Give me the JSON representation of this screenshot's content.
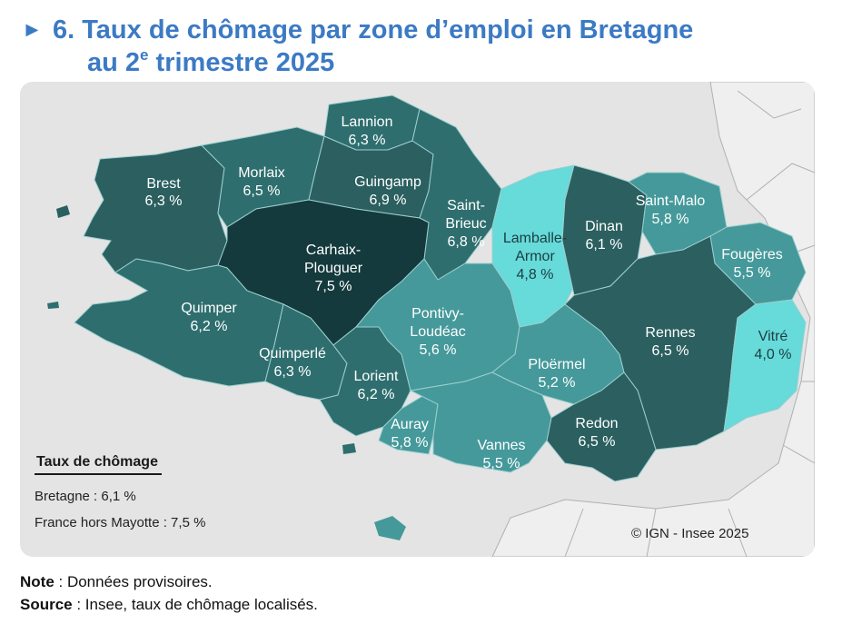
{
  "title": {
    "marker": "►",
    "line1": "6. Taux de chômage par zone d’emploi en Bretagne",
    "line2_prefix": "au 2",
    "line2_sup": "e",
    "line2_suffix": " trimestre 2025"
  },
  "map": {
    "zones": [
      {
        "name": "Brest",
        "rate": "6,3 %"
      },
      {
        "name": "Morlaix",
        "rate": "6,5 %"
      },
      {
        "name": "Lannion",
        "rate": "6,3 %"
      },
      {
        "name": "Guingamp",
        "rate": "6,9 %"
      },
      {
        "name": "Saint-Brieuc",
        "rate": "6,8 %"
      },
      {
        "name": "Lamballe-Armor",
        "rate": "4,8 %"
      },
      {
        "name": "Dinan",
        "rate": "6,1 %"
      },
      {
        "name": "Saint-Malo",
        "rate": "5,8 %"
      },
      {
        "name": "Fougères",
        "rate": "5,5 %"
      },
      {
        "name": "Carhaix-Plouguer",
        "rate": "7,5 %"
      },
      {
        "name": "Quimper",
        "rate": "6,2 %"
      },
      {
        "name": "Quimperlé",
        "rate": "6,3 %"
      },
      {
        "name": "Lorient",
        "rate": "6,2 %"
      },
      {
        "name": "Pontivy-Loudéac",
        "rate": "5,6 %"
      },
      {
        "name": "Ploërmel",
        "rate": "5,2 %"
      },
      {
        "name": "Rennes",
        "rate": "6,5 %"
      },
      {
        "name": "Vitré",
        "rate": "4,0 %"
      },
      {
        "name": "Auray",
        "rate": "5,8 %"
      },
      {
        "name": "Vannes",
        "rate": "5,5 %"
      },
      {
        "name": "Redon",
        "rate": "6,5 %"
      }
    ],
    "colors": {
      "very_high": "#143a3d",
      "high": "#2b5f60",
      "mid_high": "#2f6e6e",
      "mid": "#45999a",
      "low": "#67dada",
      "sea": "#e4e4e4",
      "border": "#9ccfcf"
    }
  },
  "legend": {
    "title": "Taux de chômage",
    "bretagne": "Bretagne : 6,1 %",
    "france": "France hors Mayotte : 7,5 %"
  },
  "copyright": "© IGN - Insee 2025",
  "footer": {
    "note_label": "Note",
    "note_text": " : Données provisoires.",
    "source_label": "Source",
    "source_text": " : Insee, taux de chômage localisés."
  }
}
